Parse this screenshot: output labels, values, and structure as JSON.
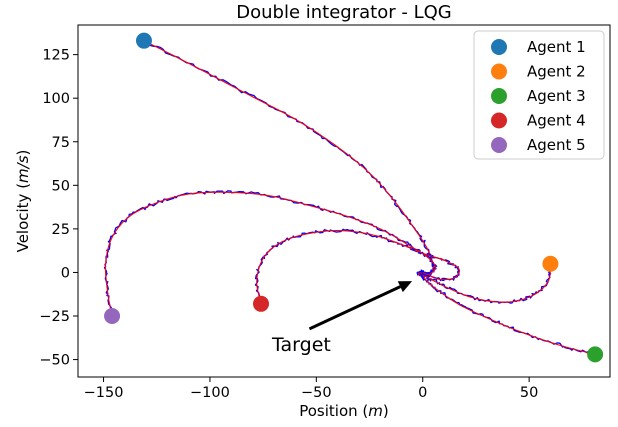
{
  "chart_data": {
    "type": "line",
    "title": "Double integrator - LQG",
    "xlabel_text": "Position (",
    "xlabel_var": "m",
    "xlabel_close": ")",
    "ylabel_text": "Velocity (",
    "ylabel_var": "m/s",
    "ylabel_close": ")",
    "xlim": [
      -162,
      88
    ],
    "ylim": [
      -60,
      142
    ],
    "xticks": [
      -150,
      -100,
      -50,
      0,
      50
    ],
    "xtick_labels": [
      "−150",
      "−100",
      "−50",
      "0",
      "50"
    ],
    "yticks": [
      -50,
      -25,
      0,
      25,
      50,
      75,
      100,
      125
    ],
    "ytick_labels": [
      "−50",
      "−25",
      "0",
      "25",
      "50",
      "75",
      "100",
      "125"
    ],
    "grid": false,
    "legend_position": "top-right",
    "noisy_trajectory_color": "#0000ff",
    "estimated_trajectory_color": "#ff0000",
    "series": [
      {
        "name": "Agent 1",
        "color": "#1f77b4",
        "start": [
          -131,
          133
        ],
        "path": [
          [
            -131,
            133
          ],
          [
            -110,
            120
          ],
          [
            -85,
            104
          ],
          [
            -60,
            88
          ],
          [
            -40,
            72
          ],
          [
            -25,
            57
          ],
          [
            -14,
            42
          ],
          [
            -5,
            27
          ],
          [
            2,
            14
          ],
          [
            5,
            3
          ],
          [
            2,
            -2
          ],
          [
            -2,
            -1
          ],
          [
            0,
            1
          ]
        ]
      },
      {
        "name": "Agent 2",
        "color": "#ff7f0e",
        "start": [
          60,
          5
        ],
        "path": [
          [
            60,
            5
          ],
          [
            59,
            -5
          ],
          [
            52,
            -13
          ],
          [
            40,
            -17
          ],
          [
            25,
            -15
          ],
          [
            12,
            -9
          ],
          [
            4,
            -4
          ],
          [
            0,
            -1
          ],
          [
            -1,
            0
          ]
        ]
      },
      {
        "name": "Agent 3",
        "color": "#2ca02c",
        "start": [
          81,
          -47
        ],
        "path": [
          [
            81,
            -47
          ],
          [
            65,
            -42
          ],
          [
            48,
            -35
          ],
          [
            32,
            -27
          ],
          [
            18,
            -19
          ],
          [
            8,
            -11
          ],
          [
            2,
            -5
          ],
          [
            0,
            -1
          ]
        ]
      },
      {
        "name": "Agent 4",
        "color": "#d62728",
        "start": [
          -76,
          -18
        ],
        "path": [
          [
            -76,
            -18
          ],
          [
            -78,
            -5
          ],
          [
            -75,
            8
          ],
          [
            -67,
            17
          ],
          [
            -55,
            22
          ],
          [
            -40,
            24
          ],
          [
            -25,
            22
          ],
          [
            -12,
            17
          ],
          [
            0,
            11
          ],
          [
            10,
            7
          ],
          [
            17,
            2
          ],
          [
            15,
            -3
          ],
          [
            8,
            -4
          ],
          [
            2,
            -1
          ],
          [
            0,
            0
          ]
        ]
      },
      {
        "name": "Agent 5",
        "color": "#9467bd",
        "start": [
          -146,
          -25
        ],
        "path": [
          [
            -146,
            -25
          ],
          [
            -148,
            -12
          ],
          [
            -149,
            5
          ],
          [
            -146,
            20
          ],
          [
            -138,
            32
          ],
          [
            -125,
            40
          ],
          [
            -110,
            45
          ],
          [
            -92,
            46
          ],
          [
            -72,
            44
          ],
          [
            -52,
            38
          ],
          [
            -35,
            32
          ],
          [
            -20,
            25
          ],
          [
            -7,
            16
          ],
          [
            2,
            9
          ],
          [
            6,
            3
          ],
          [
            3,
            -1
          ],
          [
            0,
            0
          ]
        ]
      }
    ],
    "annotations": [
      {
        "text": "Target",
        "xy": [
          -5,
          -5
        ],
        "xytext": [
          -57,
          -41
        ]
      }
    ]
  }
}
